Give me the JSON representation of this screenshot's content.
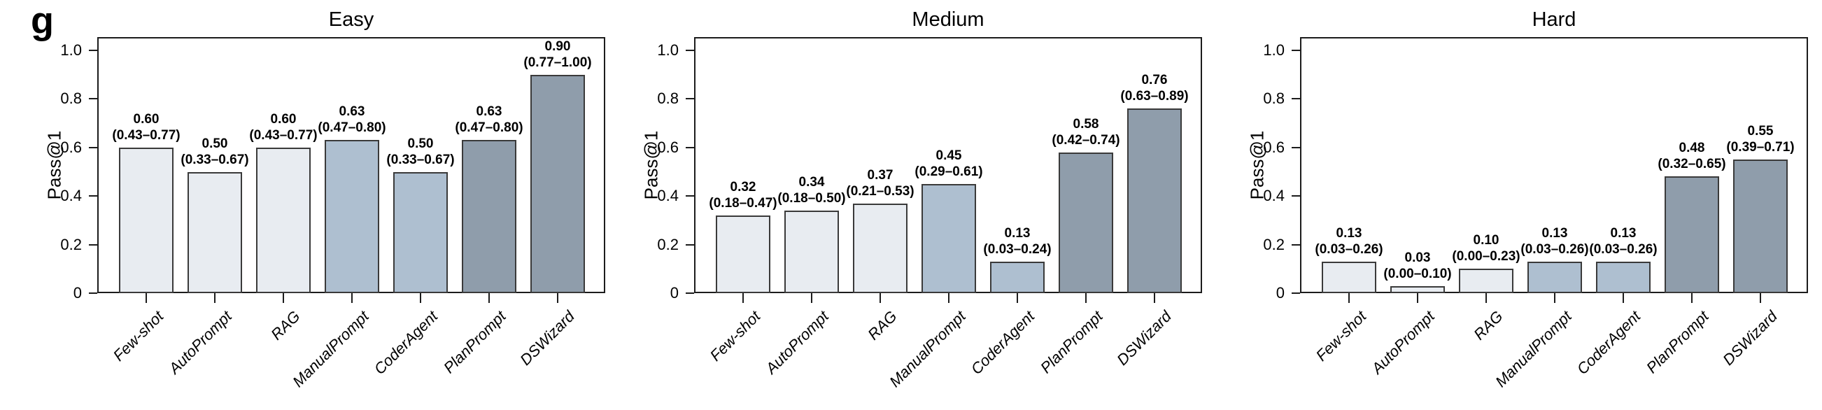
{
  "figure": {
    "panel_letter": "g",
    "palette": {
      "light": "#E8ECF1",
      "medium": "#AEBFD0",
      "dark": "#8F9DAB",
      "bar_border": "#3A3A3A",
      "axis": "#1C1C1C",
      "text": "#000000"
    }
  },
  "chart_data": [
    {
      "type": "bar",
      "title": "Easy",
      "ylabel": "Pass@1",
      "ylim": [
        0,
        1.055
      ],
      "grid": false,
      "categories": [
        "Few-shot",
        "AutoPrompt",
        "RAG",
        "ManualPrompt",
        "CoderAgent",
        "PlanPrompt",
        "DSWizard"
      ],
      "values": [
        0.6,
        0.5,
        0.6,
        0.63,
        0.5,
        0.63,
        0.9
      ],
      "labels": [
        {
          "value": "0.60",
          "ci": "(0.43–0.77)"
        },
        {
          "value": "0.50",
          "ci": "(0.33–0.67)"
        },
        {
          "value": "0.60",
          "ci": "(0.43–0.77)"
        },
        {
          "value": "0.63",
          "ci": "(0.47–0.80)"
        },
        {
          "value": "0.50",
          "ci": "(0.33–0.67)"
        },
        {
          "value": "0.63",
          "ci": "(0.47–0.80)"
        },
        {
          "value": "0.90",
          "ci": "(0.77–1.00)"
        }
      ],
      "yticks": [
        "1.0",
        "0.8",
        "0.6",
        "0.4",
        "0.2",
        "0"
      ],
      "ytick_values": [
        1.0,
        0.8,
        0.6,
        0.4,
        0.2,
        0
      ],
      "bar_color_roles": [
        "light",
        "light",
        "light",
        "medium",
        "medium",
        "dark",
        "dark"
      ]
    },
    {
      "type": "bar",
      "title": "Medium",
      "ylabel": "Pass@1",
      "ylim": [
        0,
        1.055
      ],
      "grid": false,
      "categories": [
        "Few-shot",
        "AutoPrompt",
        "RAG",
        "ManualPrompt",
        "CoderAgent",
        "PlanPrompt",
        "DSWizard"
      ],
      "values": [
        0.32,
        0.34,
        0.37,
        0.45,
        0.13,
        0.58,
        0.76
      ],
      "labels": [
        {
          "value": "0.32",
          "ci": "(0.18–0.47)"
        },
        {
          "value": "0.34",
          "ci": "(0.18–0.50)"
        },
        {
          "value": "0.37",
          "ci": "(0.21–0.53)"
        },
        {
          "value": "0.45",
          "ci": "(0.29–0.61)"
        },
        {
          "value": "0.13",
          "ci": "(0.03–0.24)"
        },
        {
          "value": "0.58",
          "ci": "(0.42–0.74)"
        },
        {
          "value": "0.76",
          "ci": "(0.63–0.89)"
        }
      ],
      "yticks": [
        "1.0",
        "0.8",
        "0.6",
        "0.4",
        "0.2",
        "0"
      ],
      "ytick_values": [
        1.0,
        0.8,
        0.6,
        0.4,
        0.2,
        0
      ],
      "bar_color_roles": [
        "light",
        "light",
        "light",
        "medium",
        "medium",
        "dark",
        "dark"
      ]
    },
    {
      "type": "bar",
      "title": "Hard",
      "ylabel": "Pass@1",
      "ylim": [
        0,
        1.055
      ],
      "grid": false,
      "categories": [
        "Few-shot",
        "AutoPrompt",
        "RAG",
        "ManualPrompt",
        "CoderAgent",
        "PlanPrompt",
        "DSWizard"
      ],
      "values": [
        0.13,
        0.03,
        0.1,
        0.13,
        0.13,
        0.48,
        0.55
      ],
      "labels": [
        {
          "value": "0.13",
          "ci": "(0.03–0.26)"
        },
        {
          "value": "0.03",
          "ci": "(0.00–0.10)"
        },
        {
          "value": "0.10",
          "ci": "(0.00–0.23)"
        },
        {
          "value": "0.13",
          "ci": "(0.03–0.26)"
        },
        {
          "value": "0.13",
          "ci": "(0.03–0.26)"
        },
        {
          "value": "0.48",
          "ci": "(0.32–0.65)"
        },
        {
          "value": "0.55",
          "ci": "(0.39–0.71)"
        }
      ],
      "yticks": [
        "1.0",
        "0.8",
        "0.6",
        "0.4",
        "0.2",
        "0"
      ],
      "ytick_values": [
        1.0,
        0.8,
        0.6,
        0.4,
        0.2,
        0
      ],
      "bar_color_roles": [
        "light",
        "light",
        "light",
        "medium",
        "medium",
        "dark",
        "dark"
      ]
    }
  ]
}
